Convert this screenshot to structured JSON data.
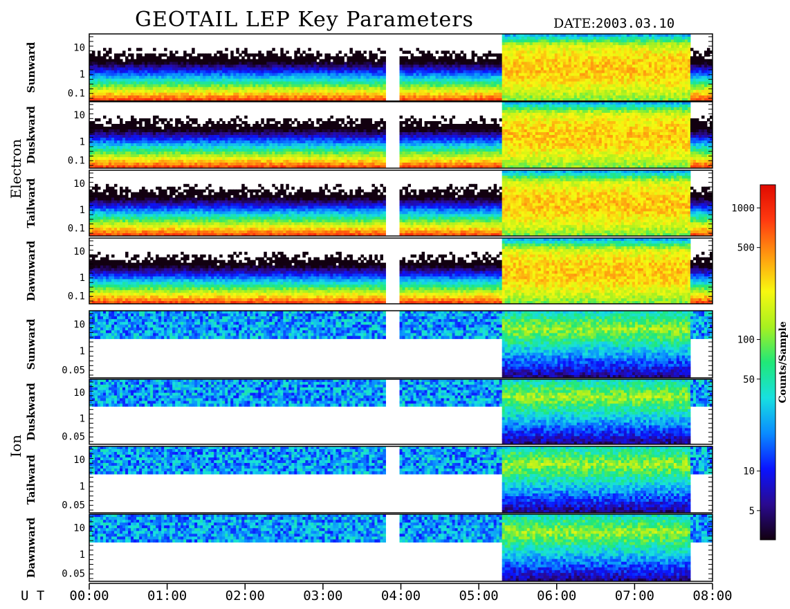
{
  "header": {
    "title": "GEOTAIL LEP Key Parameters",
    "date_label": "DATE:",
    "date_value": "2003.03.10"
  },
  "chart_data": {
    "type": "heatmap",
    "x_axis_label": "U T",
    "x_ticks": [
      "00:00",
      "01:00",
      "02:00",
      "03:00",
      "04:00",
      "05:00",
      "06:00",
      "07:00",
      "08:00"
    ],
    "x_range_hours": [
      0,
      8
    ],
    "data_gaps_hours": [
      [
        3.8,
        3.97
      ]
    ],
    "groups": [
      {
        "name": "Electron",
        "y_ticks": [
          "10",
          "1",
          "0.1"
        ],
        "panels": [
          "Sunward",
          "Duskward",
          "Tailward",
          "Dawnward"
        ]
      },
      {
        "name": "Ion",
        "y_ticks": [
          "10",
          "1",
          "0.05"
        ],
        "panels": [
          "Sunward",
          "Duskward",
          "Tailward",
          "Dawnward"
        ]
      }
    ],
    "colorbar": {
      "label": "Counts/Sample",
      "scale": "log",
      "range": [
        3,
        1500
      ],
      "ticks": [
        "1000",
        "500",
        "100",
        "50",
        "10",
        "5"
      ],
      "colors": [
        "#120010",
        "#2a0a90",
        "#0a14ff",
        "#0a8cff",
        "#18e0e0",
        "#20e878",
        "#a8f020",
        "#f8f810",
        "#ff9a10",
        "#ff3a10",
        "#e00a00"
      ]
    }
  }
}
